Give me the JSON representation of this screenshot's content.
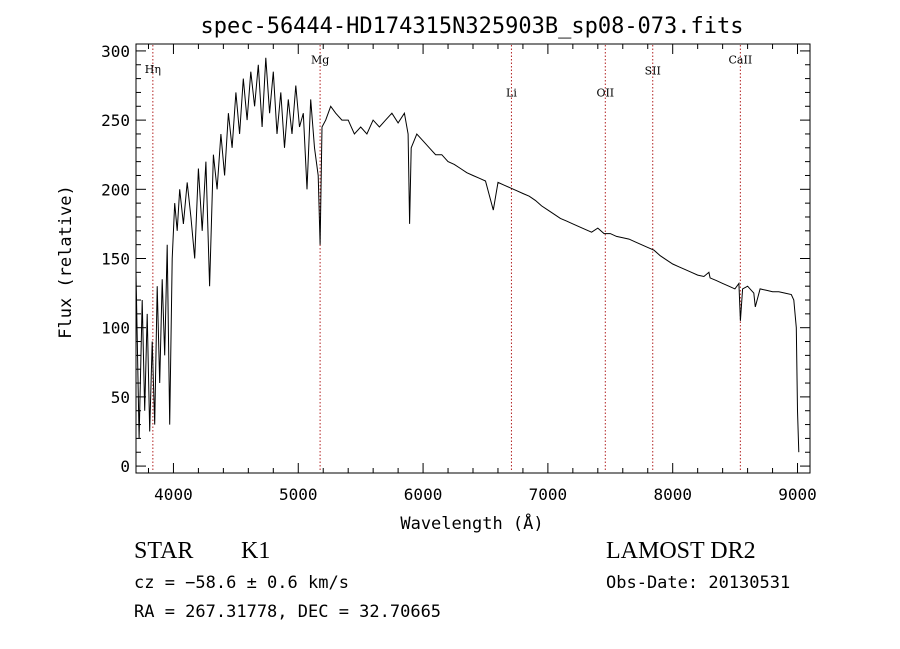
{
  "chart_data": {
    "type": "line",
    "title": "spec-56444-HD174315N325903B_sp08-073.fits",
    "xlabel": "Wavelength (Å)",
    "ylabel": "Flux (relative)",
    "xlim": [
      3700,
      9100
    ],
    "ylim": [
      -5,
      305
    ],
    "x_ticks": [
      4000,
      5000,
      6000,
      7000,
      8000,
      9000
    ],
    "x_tick_labels": [
      "4000",
      "5000",
      "6000",
      "7000",
      "8000",
      "9000"
    ],
    "y_ticks": [
      0,
      50,
      100,
      150,
      200,
      250,
      300
    ],
    "y_tick_labels": [
      "0",
      "50",
      "100",
      "150",
      "200",
      "250",
      "300"
    ],
    "line_color": "#000000",
    "marker_color": "#b22222",
    "spectral_lines": [
      {
        "label": "Hη",
        "wavelength": 3835,
        "label_flux": 284
      },
      {
        "label": "Mg",
        "wavelength": 5175,
        "label_flux": 291
      },
      {
        "label": "Li",
        "wavelength": 6708,
        "label_flux": 267
      },
      {
        "label": "OII",
        "wavelength": 7460,
        "label_flux": 267
      },
      {
        "label": "SII",
        "wavelength": 7840,
        "label_flux": 283
      },
      {
        "label": "CaII",
        "wavelength": 8542,
        "label_flux": 291
      }
    ],
    "spectrum": {
      "x": [
        3700,
        3725,
        3750,
        3770,
        3790,
        3810,
        3830,
        3850,
        3870,
        3890,
        3910,
        3930,
        3950,
        3970,
        3990,
        4010,
        4030,
        4050,
        4080,
        4110,
        4140,
        4170,
        4200,
        4230,
        4260,
        4290,
        4320,
        4350,
        4380,
        4410,
        4440,
        4470,
        4500,
        4530,
        4560,
        4590,
        4620,
        4650,
        4680,
        4710,
        4740,
        4770,
        4800,
        4830,
        4860,
        4890,
        4920,
        4950,
        4980,
        5010,
        5040,
        5070,
        5100,
        5130,
        5160,
        5175,
        5190,
        5220,
        5260,
        5300,
        5350,
        5400,
        5450,
        5500,
        5550,
        5600,
        5650,
        5700,
        5750,
        5800,
        5850,
        5880,
        5892,
        5905,
        5950,
        6000,
        6050,
        6100,
        6150,
        6200,
        6250,
        6300,
        6350,
        6400,
        6450,
        6500,
        6563,
        6600,
        6650,
        6700,
        6750,
        6800,
        6850,
        6900,
        6950,
        7000,
        7050,
        7100,
        7150,
        7200,
        7250,
        7300,
        7350,
        7400,
        7450,
        7500,
        7550,
        7600,
        7650,
        7700,
        7750,
        7800,
        7850,
        7900,
        7950,
        8000,
        8050,
        8100,
        8150,
        8200,
        8250,
        8290,
        8300,
        8350,
        8400,
        8450,
        8498,
        8530,
        8542,
        8560,
        8600,
        8650,
        8662,
        8700,
        8750,
        8800,
        8850,
        8900,
        8950,
        8970,
        8990,
        9000,
        9010
      ],
      "y": [
        140,
        20,
        120,
        40,
        110,
        25,
        90,
        30,
        130,
        60,
        135,
        80,
        160,
        30,
        150,
        190,
        170,
        200,
        175,
        205,
        180,
        150,
        215,
        170,
        220,
        130,
        225,
        200,
        240,
        210,
        255,
        230,
        270,
        240,
        280,
        250,
        285,
        260,
        290,
        245,
        295,
        255,
        285,
        240,
        270,
        230,
        265,
        240,
        275,
        245,
        255,
        200,
        265,
        230,
        210,
        160,
        245,
        250,
        260,
        255,
        250,
        250,
        240,
        245,
        240,
        250,
        245,
        250,
        255,
        248,
        255,
        240,
        175,
        230,
        240,
        235,
        230,
        225,
        225,
        220,
        218,
        215,
        212,
        210,
        208,
        206,
        185,
        205,
        203,
        201,
        199,
        197,
        195,
        192,
        188,
        185,
        182,
        179,
        177,
        175,
        173,
        171,
        169,
        172,
        168,
        168,
        166,
        165,
        164,
        162,
        160,
        158,
        156,
        152,
        149,
        146,
        144,
        142,
        140,
        138,
        137,
        140,
        136,
        134,
        132,
        130,
        128,
        132,
        105,
        128,
        130,
        125,
        115,
        128,
        127,
        126,
        126,
        125,
        124,
        120,
        100,
        40,
        10
      ]
    }
  },
  "info": {
    "object_class": "STAR",
    "subclass": "K1",
    "survey": "LAMOST DR2",
    "cz": "cz = −58.6 ± 0.6 km/s",
    "obs_date": "Obs-Date: 20130531",
    "radec": "RA = 267.31778, DEC =  32.70665"
  }
}
